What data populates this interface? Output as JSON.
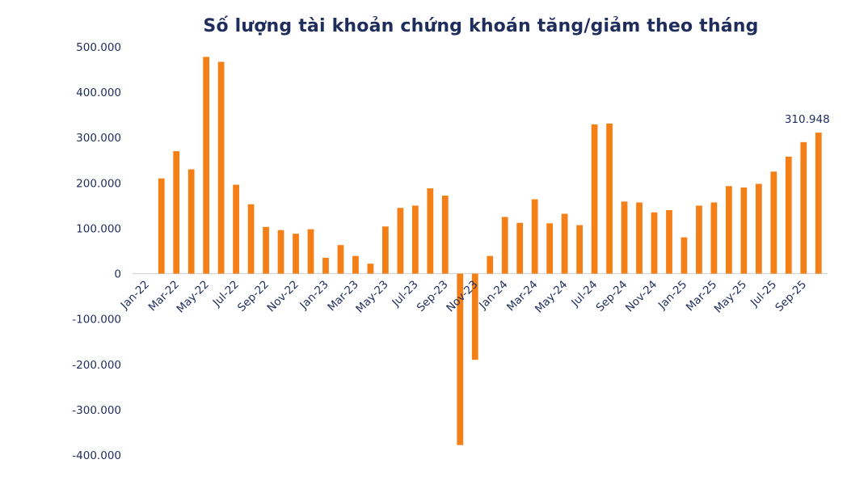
{
  "chart_data": {
    "type": "bar",
    "title": "Số lượng tài khoản chứng khoán tăng/giảm theo tháng",
    "xlabel": "",
    "ylabel": "",
    "ylim": [
      -400000,
      500000
    ],
    "yticks": [
      500000,
      400000,
      300000,
      200000,
      100000,
      0,
      -100000,
      -200000,
      -300000,
      -400000
    ],
    "ytick_labels": [
      "500.000",
      "400.000",
      "300.000",
      "200.000",
      "100.000",
      "0",
      "-100.000",
      "-200.000",
      "-300.000",
      "-400.000"
    ],
    "categories": [
      "Jan-22",
      "Feb-22",
      "Mar-22",
      "Apr-22",
      "May-22",
      "Jun-22",
      "Jul-22",
      "Aug-22",
      "Sep-22",
      "Oct-22",
      "Nov-22",
      "Dec-22",
      "Jan-23",
      "Feb-23",
      "Mar-23",
      "Apr-23",
      "May-23",
      "Jun-23",
      "Jul-23",
      "Aug-23",
      "Sep-23",
      "Oct-23",
      "Nov-23",
      "Dec-23",
      "Jan-24",
      "Feb-24",
      "Mar-24",
      "Apr-24",
      "May-24",
      "Jun-24",
      "Jul-24",
      "Aug-24",
      "Sep-24",
      "Oct-24",
      "Nov-24",
      "Dec-24",
      "Jan-25",
      "Feb-25",
      "Mar-25",
      "Apr-25",
      "May-25",
      "Jun-25",
      "Jul-25",
      "Aug-25",
      "Sep-25",
      "Oct-25"
    ],
    "x_tick_labels": [
      "Jan-22",
      "",
      "Mar-22",
      "",
      "May-22",
      "",
      "Jul-22",
      "",
      "Sep-22",
      "",
      "Nov-22",
      "",
      "Jan-23",
      "",
      "Mar-23",
      "",
      "May-23",
      "",
      "Jul-23",
      "",
      "Sep-23",
      "",
      "Nov-23",
      "",
      "Jan-24",
      "",
      "Mar-24",
      "",
      "May-24",
      "",
      "Jul-24",
      "",
      "Sep-24",
      "",
      "Nov-24",
      "",
      "Jan-25",
      "",
      "Mar-25",
      "",
      "May-25",
      "",
      "Jul-25",
      "",
      "Sep-25",
      ""
    ],
    "series": [
      {
        "color": "#f57f17",
        "values": [
          0,
          210000,
          270000,
          230000,
          478000,
          467000,
          196000,
          153000,
          103000,
          96000,
          88000,
          98000,
          35000,
          63000,
          39000,
          22000,
          104000,
          145000,
          150000,
          188000,
          172000,
          -378000,
          -190000,
          39000,
          125000,
          112000,
          164000,
          111000,
          132000,
          107000,
          329000,
          331000,
          159000,
          157000,
          135000,
          140000,
          80000,
          150000,
          157000,
          193000,
          190000,
          198000,
          225000,
          258000,
          290000,
          310948
        ]
      }
    ],
    "data_labels": [
      {
        "category": "Oct-25",
        "text": "310.948"
      }
    ],
    "grid": false,
    "legend": "none"
  }
}
